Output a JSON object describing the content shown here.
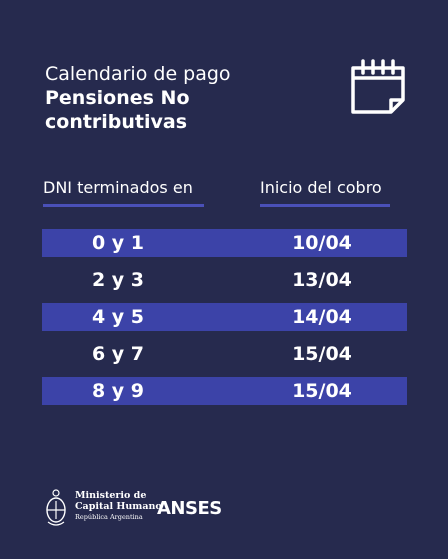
{
  "title": {
    "line1": "Calendario de pago",
    "line2": "Pensiones No",
    "line3": "contributivas"
  },
  "icon": "calendar-icon",
  "headers": {
    "dni": "DNI terminados en",
    "start": "Inicio del cobro"
  },
  "rows": [
    {
      "dni": "0 y 1",
      "date": "10/04"
    },
    {
      "dni": "2 y 3",
      "date": "13/04"
    },
    {
      "dni": "4 y 5",
      "date": "14/04"
    },
    {
      "dni": "6 y 7",
      "date": "15/04"
    },
    {
      "dni": "8 y 9",
      "date": "15/04"
    }
  ],
  "footer": {
    "ministry_line1": "Ministerio de",
    "ministry_line2": "Capital Humano",
    "ministry_line3": "República Argentina",
    "brand": "ANSES"
  },
  "colors": {
    "background": "#262a4e",
    "stripe": "#3c43a8",
    "header_line": "#4a50b8"
  }
}
